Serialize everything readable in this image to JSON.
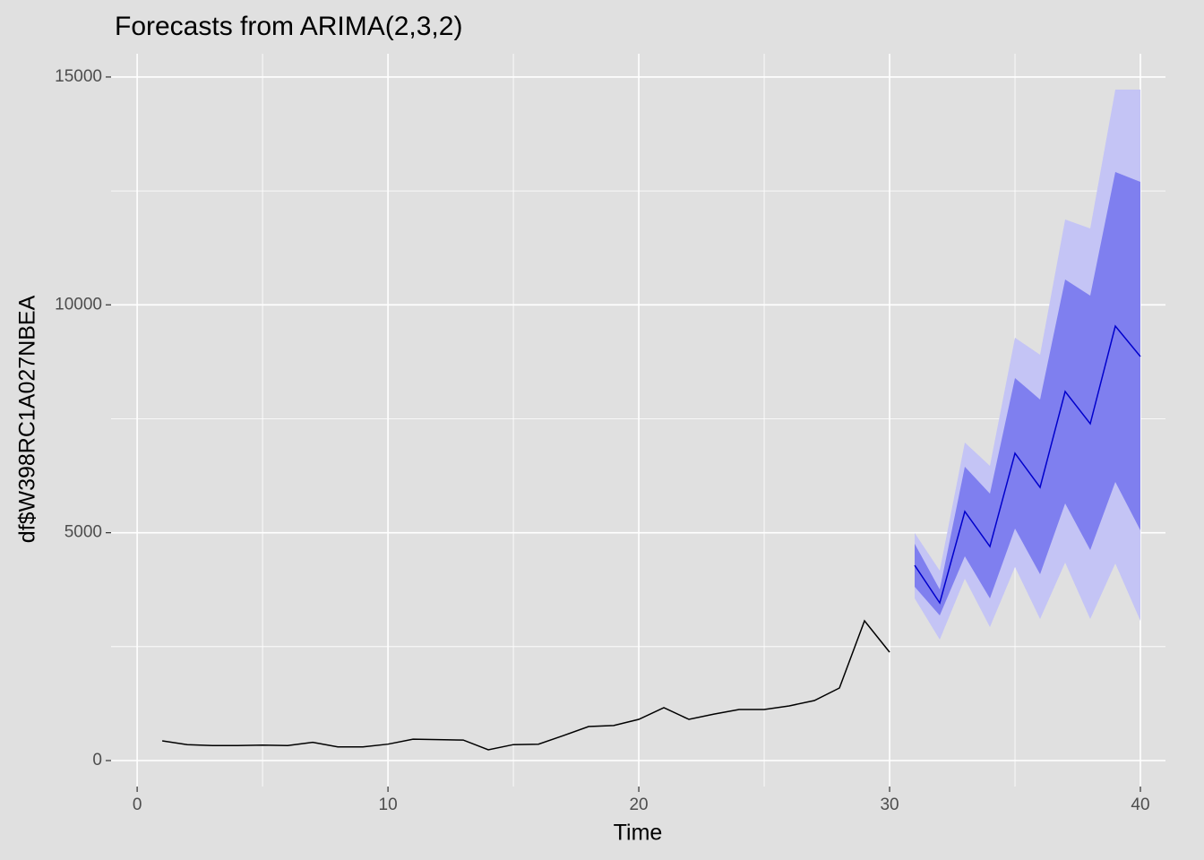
{
  "chart_data": {
    "type": "line",
    "title": "Forecasts from ARIMA(2,3,2)",
    "x_label": "Time",
    "y_label": "df$W398RC1A027NBEA",
    "xlim": [
      -1.04,
      41.0
    ],
    "ylim": [
      -570,
      15510
    ],
    "xticks": [
      0,
      10,
      20,
      30,
      40
    ],
    "yticks": [
      0,
      5000,
      10000,
      15000
    ],
    "grid": true,
    "x": [
      1,
      2,
      3,
      4,
      5,
      6,
      7,
      8,
      9,
      10,
      11,
      12,
      13,
      14,
      15,
      16,
      17,
      18,
      19,
      20,
      21,
      22,
      23,
      24,
      25,
      26,
      27,
      28,
      29,
      30,
      31,
      32,
      33,
      34,
      35,
      36,
      37,
      38,
      39,
      40
    ],
    "bands": [
      {
        "color": "#c4c4f5",
        "lower": [
          null,
          null,
          null,
          null,
          null,
          null,
          null,
          null,
          null,
          null,
          null,
          null,
          null,
          null,
          null,
          null,
          null,
          null,
          null,
          null,
          null,
          null,
          null,
          null,
          null,
          null,
          null,
          null,
          null,
          null,
          3558,
          2654,
          3990,
          2929,
          4246,
          3106,
          4344,
          3106,
          4325,
          3067
        ],
        "upper": [
          null,
          null,
          null,
          null,
          null,
          null,
          null,
          null,
          null,
          null,
          null,
          null,
          null,
          null,
          null,
          null,
          null,
          null,
          null,
          null,
          null,
          null,
          null,
          null,
          null,
          null,
          null,
          null,
          null,
          null,
          4993,
          4168,
          6979,
          6468,
          9279,
          8905,
          11873,
          11677,
          14724,
          14724
        ]
      },
      {
        "color": "#7f7fef",
        "lower": [
          null,
          null,
          null,
          null,
          null,
          null,
          null,
          null,
          null,
          null,
          null,
          null,
          null,
          null,
          null,
          null,
          null,
          null,
          null,
          null,
          null,
          null,
          null,
          null,
          null,
          null,
          null,
          null,
          null,
          null,
          3814,
          3185,
          4482,
          3558,
          5091,
          4089,
          5642,
          4620,
          6114,
          5052
        ],
        "upper": [
          null,
          null,
          null,
          null,
          null,
          null,
          null,
          null,
          null,
          null,
          null,
          null,
          null,
          null,
          null,
          null,
          null,
          null,
          null,
          null,
          null,
          null,
          null,
          null,
          null,
          null,
          null,
          null,
          null,
          null,
          4757,
          3755,
          6448,
          5858,
          8394,
          7922,
          10556,
          10203,
          12915,
          12699
        ]
      }
    ],
    "series": [
      {
        "color": "#000000",
        "values": [
          432,
          350,
          330,
          330,
          340,
          330,
          400,
          300,
          300,
          360,
          470,
          460,
          450,
          236,
          350,
          360,
          550,
          747,
          770,
          904,
          1160,
          904,
          1020,
          1120,
          1120,
          1200,
          1317,
          1592,
          3067,
          2379,
          null,
          null,
          null,
          null,
          null,
          null,
          null,
          null,
          null,
          null
        ]
      },
      {
        "color": "#0000cc",
        "values": [
          null,
          null,
          null,
          null,
          null,
          null,
          null,
          null,
          null,
          null,
          null,
          null,
          null,
          null,
          null,
          null,
          null,
          null,
          null,
          null,
          null,
          null,
          null,
          null,
          null,
          null,
          null,
          null,
          null,
          null,
          4285,
          3460,
          5465,
          4698,
          6743,
          5996,
          8099,
          7391,
          9534,
          8866
        ]
      }
    ]
  }
}
